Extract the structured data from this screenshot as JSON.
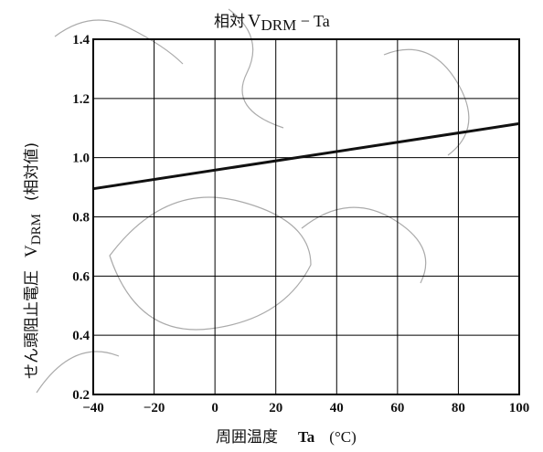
{
  "chart_data": {
    "type": "line",
    "title_main": "相対",
    "title_v": "V",
    "title_sub": "DRM",
    "title_tail": " − Ta",
    "xlabel_main": "周囲温度",
    "xlabel_var": "Ta",
    "xlabel_unit": "(°C)",
    "ylabel_main": "せん頭阻止電圧",
    "ylabel_v": "V",
    "ylabel_sub": "DRM",
    "ylabel_tail": "(相対値)",
    "xlim": [
      -40,
      100
    ],
    "ylim": [
      0.2,
      1.4
    ],
    "x_ticks": [
      -40,
      -20,
      0,
      20,
      40,
      60,
      80,
      100
    ],
    "x_tick_labels": [
      "−40",
      "−20",
      "0",
      "20",
      "40",
      "60",
      "80",
      "100"
    ],
    "y_ticks": [
      0.2,
      0.4,
      0.6,
      0.8,
      1.0,
      1.2,
      1.4
    ],
    "y_tick_labels": [
      "0.2",
      "0.4",
      "0.6",
      "0.8",
      "1.0",
      "1.2",
      "1.4"
    ],
    "grid": true,
    "series": [
      {
        "x": [
          -40,
          100
        ],
        "y": [
          0.895,
          1.115
        ]
      }
    ],
    "colors": {
      "line": "#111111",
      "grid": "#000000",
      "watermark": "#555555"
    }
  }
}
